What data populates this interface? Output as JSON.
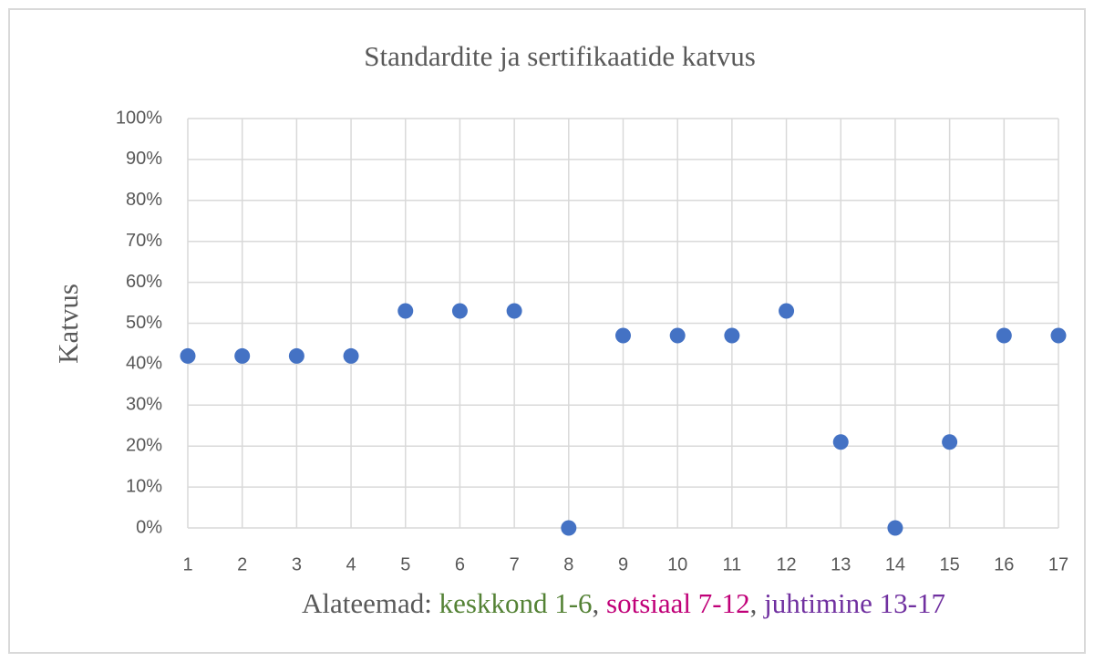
{
  "chart_data": {
    "type": "scatter",
    "title": "Standardite ja sertifikaatide  katvus",
    "y_label": "Katvus",
    "x_label": [
      {
        "text": "Alateemad: ",
        "color": "#595959"
      },
      {
        "text": "keskkond 1-6",
        "color": "#548235"
      },
      {
        "text": ", ",
        "color": "#595959"
      },
      {
        "text": "sotsiaal 7-12",
        "color": "#c00078"
      },
      {
        "text": ", ",
        "color": "#595959"
      },
      {
        "text": "juhtimine 13-17",
        "color": "#7030a0"
      }
    ],
    "x": [
      1,
      2,
      3,
      4,
      5,
      6,
      7,
      8,
      9,
      10,
      11,
      12,
      13,
      14,
      15,
      16,
      17
    ],
    "values": [
      42,
      42,
      42,
      42,
      53,
      53,
      53,
      0,
      47,
      47,
      47,
      53,
      21,
      0,
      21,
      47,
      47
    ],
    "color": "#4472c4",
    "xlim": [
      1,
      17
    ],
    "xticks": [
      1,
      2,
      3,
      4,
      5,
      6,
      7,
      8,
      9,
      10,
      11,
      12,
      13,
      14,
      15,
      16,
      17
    ],
    "ylim": [
      0,
      100
    ],
    "yticks": [
      {
        "value": 0,
        "label": "0%"
      },
      {
        "value": 10,
        "label": "10%"
      },
      {
        "value": 20,
        "label": "20%"
      },
      {
        "value": 30,
        "label": "30%"
      },
      {
        "value": 40,
        "label": "40%"
      },
      {
        "value": 50,
        "label": "50%"
      },
      {
        "value": 60,
        "label": "60%"
      },
      {
        "value": 70,
        "label": "70%"
      },
      {
        "value": 80,
        "label": "80%"
      },
      {
        "value": 90,
        "label": "90%"
      },
      {
        "value": 100,
        "label": "100%"
      }
    ],
    "grid": true
  }
}
